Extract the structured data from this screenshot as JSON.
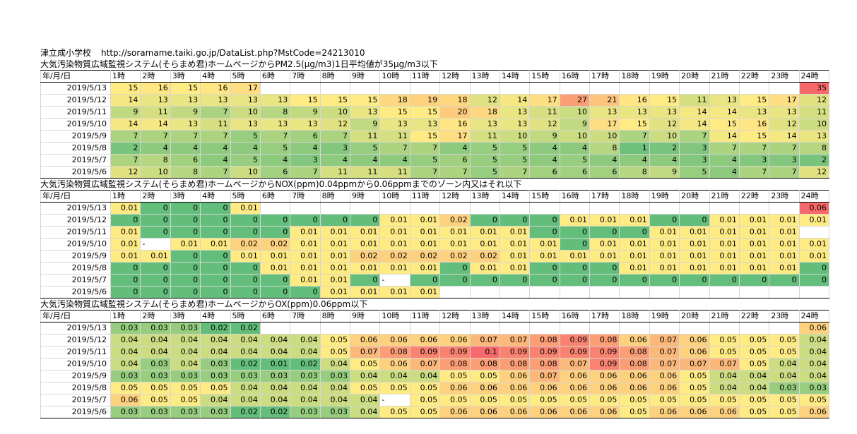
{
  "header": {
    "site": "津立成小学校",
    "url": "http://soramame.taiki.go.jp/DataList.php?MstCode=24213010"
  },
  "col_head": "年/月/日",
  "hours": [
    "1時",
    "2時",
    "3時",
    "4時",
    "5時",
    "6時",
    "7時",
    "8時",
    "9時",
    "10時",
    "11時",
    "12時",
    "13時",
    "14時",
    "15時",
    "16時",
    "17時",
    "18時",
    "19時",
    "20時",
    "21時",
    "22時",
    "23時",
    "24時"
  ],
  "sections": [
    {
      "title": "大気汚染物質広域監視システム(そらまめ君)ホームページからPM2.5(μg/m3)1日平均値が35μg/m3以下",
      "thresholds": {
        "low": 0,
        "mid": 15,
        "high": 35
      },
      "rows": [
        {
          "date": "2019/5/13",
          "v": [
            "15",
            "16",
            "15",
            "16",
            "17",
            "",
            "",
            "",
            "",
            "",
            "",
            "",
            "",
            "",
            "",
            "",
            "",
            "",
            "",
            "",
            "",
            "",
            "",
            "35"
          ]
        },
        {
          "date": "2019/5/12",
          "v": [
            "14",
            "13",
            "13",
            "13",
            "13",
            "13",
            "15",
            "15",
            "15",
            "18",
            "19",
            "18",
            "12",
            "14",
            "17",
            "27",
            "21",
            "16",
            "15",
            "11",
            "13",
            "15",
            "17",
            "12"
          ]
        },
        {
          "date": "2019/5/11",
          "v": [
            "9",
            "11",
            "9",
            "7",
            "10",
            "8",
            "9",
            "10",
            "13",
            "15",
            "15",
            "20",
            "18",
            "13",
            "11",
            "10",
            "13",
            "13",
            "13",
            "14",
            "14",
            "13",
            "13",
            "11"
          ]
        },
        {
          "date": "2019/5/10",
          "v": [
            "14",
            "14",
            "13",
            "11",
            "13",
            "13",
            "13",
            "12",
            "9",
            "13",
            "13",
            "16",
            "13",
            "13",
            "12",
            "9",
            "17",
            "15",
            "12",
            "14",
            "15",
            "16",
            "12",
            "10"
          ]
        },
        {
          "date": "2019/5/9",
          "v": [
            "7",
            "7",
            "7",
            "7",
            "5",
            "7",
            "6",
            "7",
            "11",
            "11",
            "15",
            "17",
            "11",
            "10",
            "9",
            "10",
            "10",
            "7",
            "10",
            "7",
            "14",
            "15",
            "14",
            "13"
          ]
        },
        {
          "date": "2019/5/8",
          "v": [
            "2",
            "4",
            "4",
            "4",
            "4",
            "5",
            "4",
            "3",
            "5",
            "7",
            "7",
            "4",
            "5",
            "5",
            "4",
            "4",
            "8",
            "1",
            "2",
            "3",
            "7",
            "7",
            "7",
            "8"
          ]
        },
        {
          "date": "2019/5/7",
          "v": [
            "7",
            "8",
            "6",
            "4",
            "5",
            "4",
            "3",
            "4",
            "4",
            "4",
            "5",
            "6",
            "5",
            "5",
            "4",
            "5",
            "4",
            "4",
            "4",
            "3",
            "4",
            "3",
            "3",
            "2"
          ]
        },
        {
          "date": "2019/5/6",
          "v": [
            "12",
            "10",
            "8",
            "7",
            "10",
            "6",
            "7",
            "11",
            "11",
            "11",
            "7",
            "7",
            "5",
            "7",
            "6",
            "6",
            "6",
            "8",
            "9",
            "5",
            "4",
            "7",
            "7",
            "12"
          ]
        }
      ]
    },
    {
      "title": "大気汚染物質広域監視システム(そらまめ君)ホームページからNOX(ppm)0.04ppmから0.06ppmまでのゾーン内又はそれ以下",
      "thresholds": {
        "low": 0,
        "mid": 0.01,
        "high": 0.06
      },
      "rows": [
        {
          "date": "2019/5/13",
          "v": [
            "0.01",
            "0",
            "0",
            "0",
            "0.01",
            "",
            "",
            "",
            "",
            "",
            "",
            "",
            "",
            "",
            "",
            "",
            "",
            "",
            "",
            "",
            "",
            "",
            "",
            "0.06"
          ]
        },
        {
          "date": "2019/5/12",
          "v": [
            "0",
            "0",
            "0",
            "0",
            "0",
            "0",
            "0",
            "0",
            "0",
            "0.01",
            "0.01",
            "0.02",
            "0",
            "0",
            "0",
            "0.01",
            "0.01",
            "0.01",
            "0",
            "0",
            "0.01",
            "0.01",
            "0.01",
            "0.01"
          ]
        },
        {
          "date": "2019/5/11",
          "v": [
            "0.01",
            "0",
            "0",
            "0",
            "0",
            "0",
            "0.01",
            "0.01",
            "0.01",
            "0.01",
            "0.01",
            "0.01",
            "0.01",
            "0.01",
            "0",
            "0",
            "0",
            "0",
            "0.01",
            "0.01",
            "0.01",
            "0.01",
            "0.01",
            ""
          ]
        },
        {
          "date": "2019/5/10",
          "v": [
            "0.01",
            "-",
            "0.01",
            "0.01",
            "0.02",
            "0.02",
            "0.01",
            "0.01",
            "0.01",
            "0.01",
            "0.01",
            "0.01",
            "0.01",
            "0.01",
            "0.01",
            "0",
            "0.01",
            "0.01",
            "0.01",
            "0.01",
            "0.01",
            "0.01",
            "0.01",
            "0.01"
          ]
        },
        {
          "date": "2019/5/9",
          "v": [
            "0.01",
            "0.01",
            "0",
            "0",
            "0.01",
            "0.01",
            "0.01",
            "0.01",
            "0.02",
            "0.02",
            "0.02",
            "0.02",
            "0.02",
            "0.01",
            "0.01",
            "0.01",
            "0.01",
            "0.01",
            "0.01",
            "0.01",
            "0.01",
            "0.01",
            "0.01",
            "0.01"
          ]
        },
        {
          "date": "2019/5/8",
          "v": [
            "0",
            "0",
            "0",
            "0",
            "0",
            "0.01",
            "0.01",
            "0.01",
            "0.01",
            "0.01",
            "0.01",
            "0",
            "0.01",
            "0.01",
            "0",
            "0",
            "0",
            "0.01",
            "0.01",
            "0.01",
            "0.01",
            "0.01",
            "0.01",
            "0"
          ]
        },
        {
          "date": "2019/5/7",
          "v": [
            "0",
            "0",
            "0",
            "0",
            "0",
            "0",
            "0.01",
            "0.01",
            "0",
            "-",
            "0",
            "0",
            "0",
            "0",
            "0",
            "0",
            "0",
            "0",
            "0",
            "0",
            "0",
            "0",
            "0",
            "0"
          ]
        },
        {
          "date": "2019/5/6",
          "v": [
            "0",
            "0",
            "0",
            "0",
            "0",
            "0",
            "0",
            "0.01",
            "0.01",
            "0.01",
            "0.01",
            "",
            "",
            "",
            "",
            "",
            "",
            "",
            "",
            "",
            "",
            "",
            "",
            ""
          ]
        }
      ]
    },
    {
      "title": "大気汚染物質広域監視システム(そらまめ君)ホームページからOX(ppm)0.06ppm以下",
      "thresholds": {
        "low": 0.02,
        "mid": 0.05,
        "high": 0.1
      },
      "rows": [
        {
          "date": "2019/5/13",
          "v": [
            "0.03",
            "0.03",
            "0.03",
            "0.02",
            "0.02",
            "",
            "",
            "",
            "",
            "",
            "",
            "",
            "",
            "",
            "",
            "",
            "",
            "",
            "",
            "",
            "",
            "",
            "",
            "0.06"
          ]
        },
        {
          "date": "2019/5/12",
          "v": [
            "0.04",
            "0.04",
            "0.04",
            "0.04",
            "0.04",
            "0.04",
            "0.04",
            "0.05",
            "0.06",
            "0.06",
            "0.06",
            "0.06",
            "0.07",
            "0.07",
            "0.08",
            "0.09",
            "0.08",
            "0.06",
            "0.07",
            "0.06",
            "0.05",
            "0.05",
            "0.05",
            "0.04"
          ]
        },
        {
          "date": "2019/5/11",
          "v": [
            "0.04",
            "0.04",
            "0.04",
            "0.04",
            "0.04",
            "0.04",
            "0.04",
            "0.05",
            "0.07",
            "0.08",
            "0.09",
            "0.09",
            "0.1",
            "0.09",
            "0.09",
            "0.09",
            "0.09",
            "0.08",
            "0.07",
            "0.06",
            "0.05",
            "0.05",
            "0.05",
            "0.04"
          ]
        },
        {
          "date": "2019/5/10",
          "v": [
            "0.04",
            "0.03",
            "0.04",
            "0.03",
            "0.02",
            "0.01",
            "0.02",
            "0.04",
            "0.05",
            "0.06",
            "0.07",
            "0.08",
            "0.08",
            "0.08",
            "0.08",
            "0.07",
            "0.09",
            "0.08",
            "0.07",
            "0.07",
            "0.07",
            "0.05",
            "0.04",
            "0.04"
          ]
        },
        {
          "date": "2019/5/9",
          "v": [
            "0.03",
            "0.03",
            "0.03",
            "0.03",
            "0.03",
            "0.03",
            "0.03",
            "0.03",
            "0.04",
            "0.04",
            "0.04",
            "0.05",
            "0.05",
            "0.06",
            "0.07",
            "0.06",
            "0.06",
            "0.06",
            "0.06",
            "0.05",
            "0.04",
            "0.04",
            "0.04",
            "0.04"
          ]
        },
        {
          "date": "2019/5/8",
          "v": [
            "0.05",
            "0.05",
            "0.05",
            "0.05",
            "0.04",
            "0.04",
            "0.04",
            "0.04",
            "0.05",
            "0.05",
            "0.05",
            "0.06",
            "0.06",
            "0.06",
            "0.06",
            "0.06",
            "0.06",
            "0.06",
            "0.06",
            "0.05",
            "0.04",
            "0.04",
            "0.03",
            "0.03"
          ]
        },
        {
          "date": "2019/5/7",
          "v": [
            "0.06",
            "0.05",
            "0.05",
            "0.04",
            "0.04",
            "0.04",
            "0.04",
            "0.04",
            "0.04",
            "-",
            "0.05",
            "0.05",
            "0.05",
            "0.05",
            "0.05",
            "0.05",
            "0.05",
            "0.05",
            "0.05",
            "0.05",
            "0.05",
            "0.05",
            "0.05",
            "0.05"
          ]
        },
        {
          "date": "2019/5/6",
          "v": [
            "0.03",
            "0.03",
            "0.03",
            "0.03",
            "0.02",
            "0.02",
            "0.03",
            "0.03",
            "0.04",
            "0.05",
            "0.05",
            "0.06",
            "0.06",
            "0.06",
            "0.06",
            "0.06",
            "0.06",
            "0.05",
            "0.06",
            "0.06",
            "0.06",
            "0.05",
            "0.05",
            "0.06"
          ]
        }
      ]
    }
  ],
  "colors": {
    "green": "#63be7b",
    "yellow": "#ffeb84",
    "red": "#f8696b"
  }
}
